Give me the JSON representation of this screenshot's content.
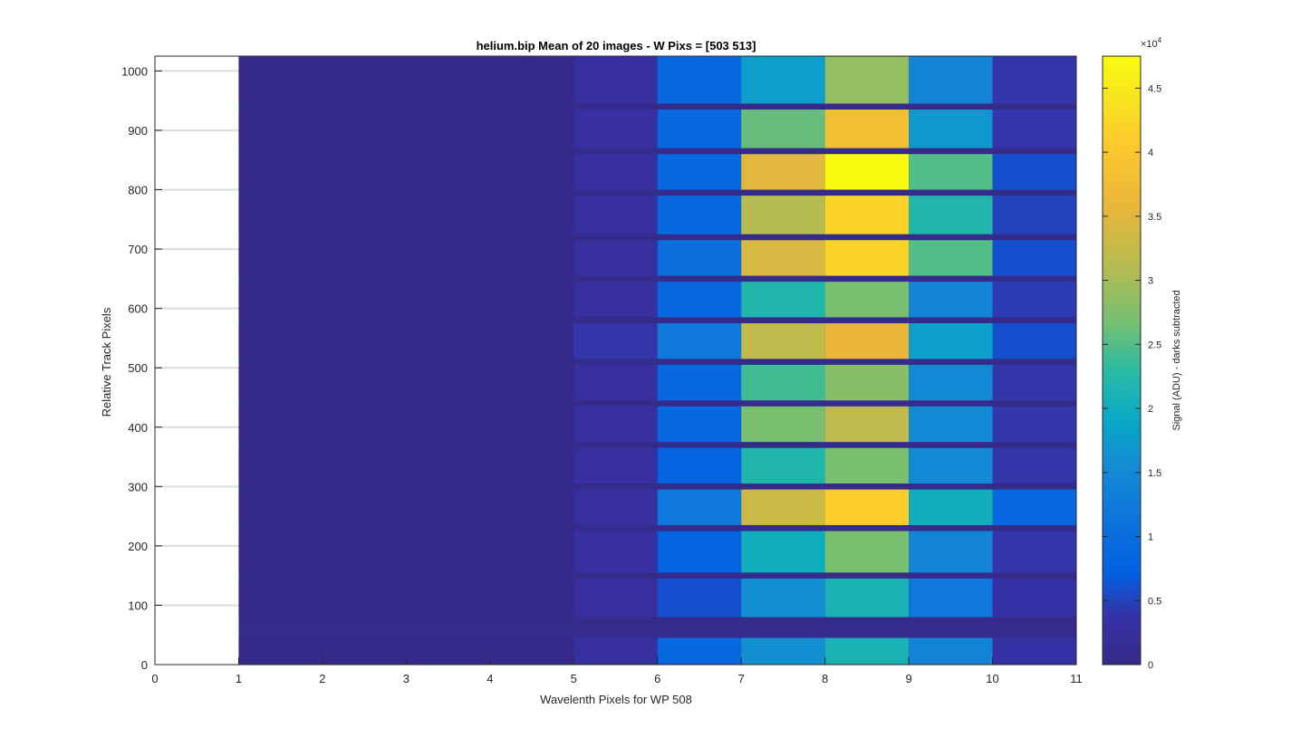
{
  "chart_data": {
    "type": "heatmap",
    "title": "helium.bip  Mean of 20 images - W Pixs = [503  513]",
    "xlabel": "Wavelenth Pixels for WP 508",
    "ylabel": "Relative Track Pixels",
    "xlim": [
      0,
      11
    ],
    "ylim": [
      0,
      1025
    ],
    "x_ticks": [
      "0",
      "1",
      "2",
      "3",
      "4",
      "5",
      "6",
      "7",
      "8",
      "9",
      "10",
      "11"
    ],
    "y_ticks": [
      "0",
      "100",
      "200",
      "300",
      "400",
      "500",
      "600",
      "700",
      "800",
      "900",
      "1000"
    ],
    "x_tick_values": [
      0,
      1,
      2,
      3,
      4,
      5,
      6,
      7,
      8,
      9,
      10,
      11
    ],
    "y_tick_values": [
      0,
      100,
      200,
      300,
      400,
      500,
      600,
      700,
      800,
      900,
      1000
    ],
    "grid": "y-only",
    "colormap": "parula",
    "colorbar": {
      "label": "Signal (ADU) - darks subtracted",
      "exponent_label": "×10",
      "exponent": "4",
      "range": [
        0,
        47500
      ],
      "ticks": [
        "0",
        "0.5",
        "1",
        "1.5",
        "2",
        "2.5",
        "3",
        "3.5",
        "4",
        "4.5"
      ],
      "tick_values": [
        0,
        5000,
        10000,
        15000,
        20000,
        25000,
        30000,
        35000,
        40000,
        45000
      ]
    },
    "column_edges": [
      1,
      2,
      3,
      4,
      5,
      6,
      7,
      8,
      9,
      10,
      11
    ],
    "bands": [
      {
        "y0": 0,
        "y1": 45,
        "values": [
          200,
          200,
          200,
          200,
          3000,
          9000,
          16000,
          21000,
          14000,
          3500
        ]
      },
      {
        "y0": 80,
        "y1": 145,
        "values": [
          200,
          200,
          200,
          200,
          2500,
          6000,
          16000,
          21000,
          12000,
          3500
        ]
      },
      {
        "y0": 155,
        "y1": 225,
        "values": [
          200,
          200,
          200,
          200,
          3000,
          8000,
          20000,
          27000,
          14000,
          4000
        ]
      },
      {
        "y0": 235,
        "y1": 295,
        "values": [
          200,
          200,
          200,
          200,
          3000,
          12000,
          33000,
          41000,
          20000,
          9000
        ]
      },
      {
        "y0": 305,
        "y1": 365,
        "values": [
          200,
          200,
          200,
          200,
          3000,
          8000,
          22000,
          27000,
          15000,
          4000
        ]
      },
      {
        "y0": 375,
        "y1": 435,
        "values": [
          200,
          200,
          200,
          200,
          3000,
          9000,
          27000,
          32000,
          15000,
          4000
        ]
      },
      {
        "y0": 445,
        "y1": 505,
        "values": [
          200,
          200,
          200,
          200,
          3000,
          9000,
          24000,
          28000,
          15000,
          4000
        ]
      },
      {
        "y0": 515,
        "y1": 575,
        "values": [
          200,
          200,
          200,
          200,
          4000,
          12000,
          32000,
          36000,
          18000,
          6000
        ]
      },
      {
        "y0": 585,
        "y1": 645,
        "values": [
          200,
          200,
          200,
          200,
          3000,
          9000,
          22000,
          27000,
          14000,
          4500
        ]
      },
      {
        "y0": 655,
        "y1": 715,
        "values": [
          200,
          200,
          200,
          200,
          3000,
          10000,
          34000,
          42000,
          25000,
          6000
        ]
      },
      {
        "y0": 725,
        "y1": 790,
        "values": [
          200,
          200,
          200,
          200,
          3000,
          9000,
          31000,
          42000,
          22000,
          5000
        ]
      },
      {
        "y0": 800,
        "y1": 860,
        "values": [
          200,
          200,
          200,
          200,
          3000,
          9000,
          35000,
          47500,
          25000,
          6000
        ]
      },
      {
        "y0": 870,
        "y1": 935,
        "values": [
          200,
          200,
          200,
          200,
          3000,
          9000,
          26000,
          38000,
          17000,
          4000
        ]
      },
      {
        "y0": 945,
        "y1": 1025,
        "values": [
          200,
          200,
          200,
          200,
          3000,
          9000,
          18000,
          29000,
          14000,
          4000
        ]
      }
    ],
    "background_value": 500,
    "left_blank_columns": "0-1"
  }
}
